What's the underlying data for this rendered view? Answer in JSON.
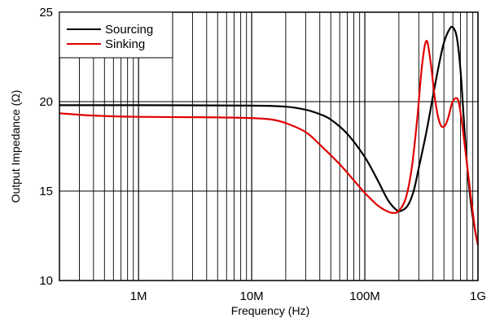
{
  "chart_data": {
    "type": "line",
    "xlabel": "Frequency (Hz)",
    "ylabel": "Output Impedance (Ω)",
    "x_scale": "log",
    "xlim": [
      200000,
      1000000000
    ],
    "ylim": [
      10,
      25
    ],
    "grid": true,
    "legend_position": "top-left",
    "x_ticks": [
      {
        "value": 1000000,
        "label": "1M"
      },
      {
        "value": 10000000,
        "label": "10M"
      },
      {
        "value": 100000000,
        "label": "100M"
      },
      {
        "value": 1000000000,
        "label": "1G"
      }
    ],
    "y_ticks": [
      {
        "value": 10,
        "label": "10"
      },
      {
        "value": 15,
        "label": "15"
      },
      {
        "value": 20,
        "label": "20"
      },
      {
        "value": 25,
        "label": "25"
      }
    ],
    "series": [
      {
        "name": "Sourcing",
        "color": "#000000",
        "points": [
          [
            200000,
            19.8
          ],
          [
            1000000,
            19.8
          ],
          [
            10000000,
            19.78
          ],
          [
            20000000,
            19.72
          ],
          [
            30000000,
            19.55
          ],
          [
            40000000,
            19.3
          ],
          [
            50000000,
            19.0
          ],
          [
            70000000,
            18.2
          ],
          [
            100000000,
            16.9
          ],
          [
            130000000,
            15.6
          ],
          [
            160000000,
            14.5
          ],
          [
            190000000,
            13.95
          ],
          [
            210000000,
            13.9
          ],
          [
            240000000,
            14.2
          ],
          [
            270000000,
            15.0
          ],
          [
            300000000,
            16.3
          ],
          [
            350000000,
            18.3
          ],
          [
            400000000,
            20.3
          ],
          [
            450000000,
            22.0
          ],
          [
            500000000,
            23.3
          ],
          [
            560000000,
            24.05
          ],
          [
            600000000,
            24.15
          ],
          [
            650000000,
            23.6
          ],
          [
            700000000,
            21.8
          ],
          [
            750000000,
            19.0
          ],
          [
            800000000,
            16.5
          ],
          [
            870000000,
            14.2
          ],
          [
            930000000,
            13.0
          ],
          [
            1000000000,
            12.0
          ]
        ]
      },
      {
        "name": "Sinking",
        "color": "#e00000",
        "points": [
          [
            200000,
            19.35
          ],
          [
            400000,
            19.22
          ],
          [
            1000000,
            19.15
          ],
          [
            5000000,
            19.12
          ],
          [
            10000000,
            19.08
          ],
          [
            15000000,
            19.0
          ],
          [
            20000000,
            18.8
          ],
          [
            30000000,
            18.3
          ],
          [
            40000000,
            17.6
          ],
          [
            60000000,
            16.5
          ],
          [
            80000000,
            15.6
          ],
          [
            100000000,
            14.9
          ],
          [
            130000000,
            14.2
          ],
          [
            160000000,
            13.85
          ],
          [
            180000000,
            13.78
          ],
          [
            200000000,
            13.9
          ],
          [
            230000000,
            14.6
          ],
          [
            260000000,
            16.3
          ],
          [
            290000000,
            19.0
          ],
          [
            320000000,
            22.0
          ],
          [
            350000000,
            23.4
          ],
          [
            380000000,
            22.3
          ],
          [
            420000000,
            20.0
          ],
          [
            460000000,
            18.8
          ],
          [
            500000000,
            18.6
          ],
          [
            540000000,
            19.0
          ],
          [
            590000000,
            19.9
          ],
          [
            640000000,
            20.2
          ],
          [
            680000000,
            19.9
          ],
          [
            730000000,
            18.6
          ],
          [
            800000000,
            16.5
          ],
          [
            880000000,
            14.3
          ],
          [
            950000000,
            12.7
          ],
          [
            1000000000,
            12.0
          ]
        ]
      }
    ]
  }
}
